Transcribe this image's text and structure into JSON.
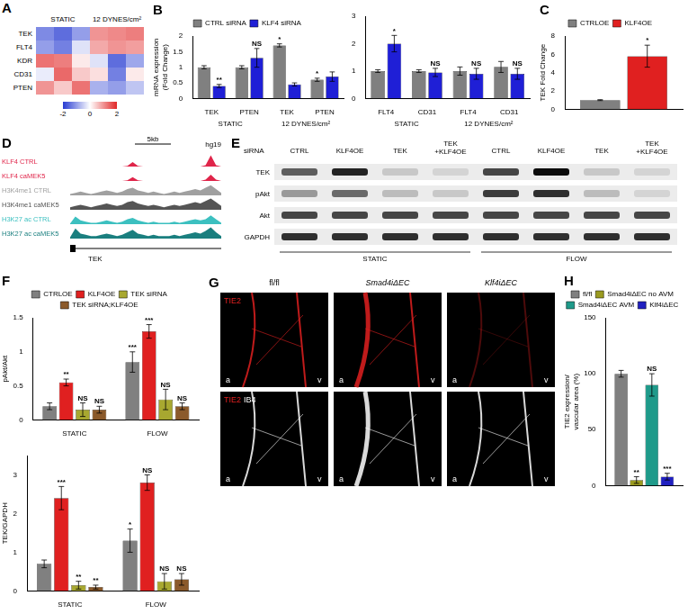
{
  "chart_data": [
    {
      "panel": "A",
      "type": "heatmap",
      "columns": [
        "STATIC",
        "12 DYNES/cm²"
      ],
      "rows": [
        "TEK",
        "FLT4",
        "KDR",
        "CD31",
        "PTEN"
      ],
      "cells": [
        [
          -1.2,
          -1.5,
          -1.0,
          1.0,
          1.1,
          1.2
        ],
        [
          -1.0,
          -1.3,
          -0.3,
          0.8,
          1.0,
          0.9
        ],
        [
          1.3,
          1.2,
          0.2,
          -0.3,
          -1.5,
          -0.9
        ],
        [
          -0.2,
          1.4,
          0.5,
          0.3,
          -1.3,
          0.2
        ],
        [
          1.0,
          0.5,
          1.3,
          -0.8,
          -1.0,
          -0.6
        ]
      ],
      "colorbar": {
        "lim": [
          -2,
          2
        ],
        "ticks": [
          -2,
          0,
          2
        ]
      }
    },
    {
      "panel": "B",
      "type": "bar",
      "categories": [
        "TEK",
        "PTEN",
        "TEK",
        "PTEN"
      ],
      "group_labels": [
        "STATIC",
        "12 DYNES/cm²"
      ],
      "y_label": [
        "mRNA expression",
        "(Fold Change)"
      ],
      "ylim": [
        0,
        2
      ],
      "yticks": [
        0,
        0.5,
        1,
        1.5,
        2
      ],
      "grid": false,
      "legend": "top",
      "series": [
        {
          "name": "CTRL siRNA",
          "color": "#808080",
          "values": [
            1.0,
            1.0,
            1.7,
            0.6
          ],
          "errors": [
            0.05,
            0.05,
            0.05,
            0.05
          ],
          "annotations": [
            null,
            null,
            "*",
            "*"
          ]
        },
        {
          "name": "KLF4 siRNA",
          "color": "#1f1fd6",
          "values": [
            0.4,
            1.3,
            0.45,
            0.7
          ],
          "errors": [
            0.05,
            0.3,
            0.05,
            0.15
          ],
          "annotations": [
            "**",
            "NS",
            null,
            null
          ]
        }
      ]
    },
    {
      "type": "bar",
      "categories": [
        "FLT4",
        "CD31",
        "FLT4",
        "CD31"
      ],
      "group_labels": [
        "STATIC",
        "12 DYNES/cm²"
      ],
      "ylim": [
        0,
        3
      ],
      "yticks": [
        0,
        1,
        2,
        3
      ],
      "grid": false,
      "series": [
        {
          "name": "CTRL siRNA",
          "color": "#808080",
          "values": [
            1.0,
            1.0,
            1.0,
            1.15
          ],
          "errors": [
            0.05,
            0.05,
            0.15,
            0.2
          ],
          "annotations": [
            null,
            null,
            null,
            null
          ]
        },
        {
          "name": "KLF4 siRNA",
          "color": "#1f1fd6",
          "values": [
            2.0,
            0.95,
            0.9,
            0.9
          ],
          "errors": [
            0.3,
            0.15,
            0.2,
            0.2
          ],
          "annotations": [
            "*",
            "NS",
            "NS",
            "NS"
          ]
        }
      ]
    },
    {
      "panel": "C",
      "type": "bar",
      "categories": [
        null
      ],
      "y_label": [
        "TEK Fold Change"
      ],
      "ylim": [
        0,
        8
      ],
      "yticks": [
        0,
        2,
        4,
        6,
        8
      ],
      "grid": false,
      "legend": "top",
      "series": [
        {
          "name": "CTRLOE",
          "color": "#808080",
          "values": [
            1.0
          ],
          "errors": [
            0.05
          ],
          "annotations": [
            null
          ]
        },
        {
          "name": "KLF4OE",
          "color": "#e02020",
          "values": [
            5.8
          ],
          "errors": [
            1.2
          ],
          "annotations": [
            "*"
          ]
        }
      ]
    },
    {
      "panel": "F",
      "type": "bar",
      "categories": [
        "STATIC",
        "FLOW"
      ],
      "y_label": [
        "pAkt/Akt"
      ],
      "ylim": [
        0,
        1.5
      ],
      "yticks": [
        0,
        0.5,
        1,
        1.5
      ],
      "grid": false,
      "legend": "top",
      "series": [
        {
          "name": "CTRLOE",
          "color": "#808080",
          "values": [
            0.2,
            0.85
          ],
          "errors": [
            0.05,
            0.15
          ],
          "annotations": [
            null,
            "***"
          ]
        },
        {
          "name": "KLF4OE",
          "color": "#e02020",
          "values": [
            0.55,
            1.3
          ],
          "errors": [
            0.05,
            0.1
          ],
          "annotations": [
            "**",
            "***"
          ]
        },
        {
          "name": "TEK siRNA",
          "color": "#a8a830",
          "values": [
            0.15,
            0.3
          ],
          "errors": [
            0.1,
            0.15
          ],
          "annotations": [
            "NS",
            "NS"
          ]
        },
        {
          "name": "TEK siRNA;KLF4OE",
          "color": "#8b5a2b",
          "values": [
            0.15,
            0.2
          ],
          "errors": [
            0.05,
            0.05
          ],
          "annotations": [
            "NS",
            "NS"
          ]
        }
      ]
    },
    {
      "type": "bar",
      "categories": [
        "STATIC",
        "FLOW"
      ],
      "y_label": [
        "TEK/GAPDH"
      ],
      "ylim": [
        0,
        3.5
      ],
      "yticks": [
        0,
        1,
        2,
        3
      ],
      "grid": false,
      "series": [
        {
          "name": "CTRLOE",
          "color": "#808080",
          "values": [
            0.7,
            1.3
          ],
          "errors": [
            0.1,
            0.3
          ],
          "annotations": [
            null,
            "*"
          ]
        },
        {
          "name": "KLF4OE",
          "color": "#e02020",
          "values": [
            2.4,
            2.8
          ],
          "errors": [
            0.3,
            0.2
          ],
          "annotations": [
            "***",
            "NS"
          ]
        },
        {
          "name": "TEK siRNA",
          "color": "#a8a830",
          "values": [
            0.15,
            0.25
          ],
          "errors": [
            0.1,
            0.2
          ],
          "annotations": [
            "**",
            "NS"
          ]
        },
        {
          "name": "TEK siRNA;KLF4OE",
          "color": "#8b5a2b",
          "values": [
            0.1,
            0.3
          ],
          "errors": [
            0.05,
            0.15
          ],
          "annotations": [
            "**",
            "NS"
          ]
        }
      ]
    },
    {
      "panel": "H",
      "type": "bar",
      "categories": [
        null
      ],
      "y_label": [
        "TIE2 expression/",
        "vascular area (%)"
      ],
      "ylim": [
        0,
        150
      ],
      "yticks": [
        0,
        50,
        100,
        150
      ],
      "grid": false,
      "legend": "top",
      "series": [
        {
          "name": "fl/fl",
          "color": "#808080",
          "values": [
            100
          ],
          "errors": [
            3
          ],
          "annotations": [
            null
          ]
        },
        {
          "name": "Smad4iΔEC no AVM",
          "color": "#9a9a20",
          "values": [
            5
          ],
          "errors": [
            3
          ],
          "annotations": [
            "**"
          ]
        },
        {
          "name": "Smad4iΔEC AVM",
          "color": "#1f9a8a",
          "values": [
            90
          ],
          "errors": [
            10
          ],
          "annotations": [
            "NS"
          ]
        },
        {
          "name": "Klf4iΔEC",
          "color": "#2020c0",
          "values": [
            8
          ],
          "errors": [
            3
          ],
          "annotations": [
            "***"
          ]
        }
      ]
    }
  ],
  "panels": [
    {
      "panel": "D",
      "scale": "5kb",
      "genome": "hg19",
      "gene": "TEK",
      "tracks": [
        {
          "name": "KLF4 CTRL",
          "color": "#e0254a",
          "signal": [
            0,
            0,
            0,
            0,
            0,
            0,
            0,
            0,
            0,
            0,
            0,
            0.05,
            0.35,
            0.05,
            0,
            0,
            0,
            0,
            0,
            0,
            0,
            0,
            0,
            0,
            0,
            0,
            0.1,
            0.9,
            0.1,
            0
          ]
        },
        {
          "name": "KLF4 caMEK5",
          "color": "#e0254a",
          "signal": [
            0,
            0,
            0,
            0,
            0,
            0,
            0,
            0,
            0,
            0,
            0,
            0.05,
            0.3,
            0.05,
            0,
            0,
            0,
            0,
            0,
            0,
            0,
            0,
            0,
            0,
            0,
            0,
            0.1,
            0.5,
            0.1,
            0
          ]
        },
        {
          "name": "H3K4me1 CTRL",
          "color": "#a0a0a0",
          "signal": [
            0.1,
            0.2,
            0.3,
            0.2,
            0.1,
            0.2,
            0.3,
            0.4,
            0.3,
            0.2,
            0.3,
            0.5,
            0.6,
            0.4,
            0.3,
            0.2,
            0.3,
            0.2,
            0.1,
            0.2,
            0.3,
            0.2,
            0.3,
            0.4,
            0.5,
            0.4,
            0.6,
            0.8,
            0.5,
            0.2
          ]
        },
        {
          "name": "H3K4me1 caMEK5",
          "color": "#555555",
          "signal": [
            0.2,
            0.3,
            0.4,
            0.3,
            0.2,
            0.3,
            0.4,
            0.5,
            0.4,
            0.3,
            0.4,
            0.6,
            0.7,
            0.5,
            0.4,
            0.3,
            0.4,
            0.3,
            0.2,
            0.3,
            0.4,
            0.3,
            0.4,
            0.5,
            0.6,
            0.5,
            0.7,
            0.9,
            0.6,
            0.3
          ]
        },
        {
          "name": "H3K27 ac CTRL",
          "color": "#3cc0c0",
          "signal": [
            0.05,
            0.6,
            0.3,
            0.2,
            0.1,
            0.1,
            0.2,
            0.3,
            0.2,
            0.1,
            0.2,
            0.4,
            0.5,
            0.3,
            0.2,
            0.1,
            0.2,
            0.1,
            0.1,
            0.1,
            0.2,
            0.1,
            0.2,
            0.3,
            0.4,
            0.3,
            0.4,
            0.7,
            0.4,
            0.1
          ]
        },
        {
          "name": "H3K27 ac caMEK5",
          "color": "#1a7f7f",
          "signal": [
            0.1,
            0.8,
            0.4,
            0.3,
            0.2,
            0.2,
            0.3,
            0.4,
            0.3,
            0.2,
            0.3,
            0.5,
            0.7,
            0.4,
            0.3,
            0.2,
            0.3,
            0.2,
            0.2,
            0.2,
            0.3,
            0.2,
            0.3,
            0.4,
            0.5,
            0.4,
            0.6,
            0.9,
            0.5,
            0.2
          ]
        }
      ]
    },
    {
      "panel": "E",
      "header": "siRNA",
      "lanes": [
        "CTRL",
        "KLF4OE",
        "TEK",
        "TEK +KLF4OE",
        "CTRL",
        "KLF4OE",
        "TEK",
        "TEK +KLF4OE"
      ],
      "conditions": [
        "STATIC",
        "FLOW"
      ],
      "rows": [
        {
          "name": "TEK",
          "intensity": [
            0.6,
            0.85,
            0.15,
            0.1,
            0.7,
            0.95,
            0.15,
            0.1
          ]
        },
        {
          "name": "pAkt",
          "intensity": [
            0.35,
            0.55,
            0.2,
            0.15,
            0.75,
            0.8,
            0.2,
            0.1
          ]
        },
        {
          "name": "Akt",
          "intensity": [
            0.7,
            0.7,
            0.7,
            0.7,
            0.7,
            0.7,
            0.7,
            0.7
          ]
        },
        {
          "name": "GAPDH",
          "intensity": [
            0.8,
            0.8,
            0.8,
            0.8,
            0.8,
            0.8,
            0.8,
            0.8
          ]
        }
      ]
    },
    {
      "panel": "G",
      "columns": [
        "fl/fl",
        "Smad4iΔEC",
        "Klf4iΔEC"
      ],
      "rows": [
        [
          "TIE2"
        ],
        [
          "TIE2",
          "IB4"
        ]
      ],
      "vessel_labels": [
        "a",
        "v"
      ]
    }
  ]
}
